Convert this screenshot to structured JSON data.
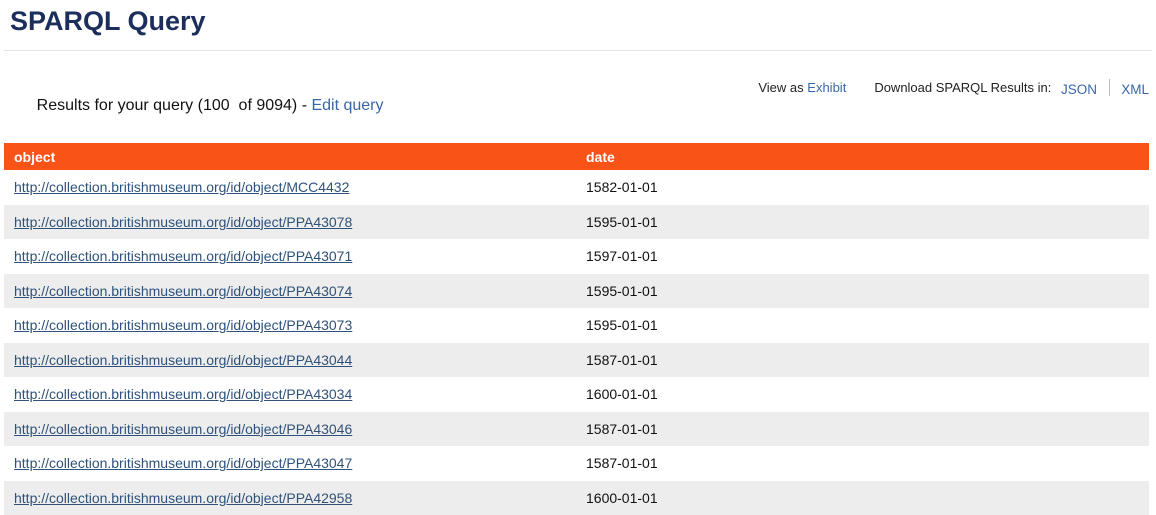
{
  "page": {
    "title": "SPARQL Query"
  },
  "results_bar": {
    "summary_prefix": "Results for your query (100  of 9094) - ",
    "edit_query_label": "Edit query",
    "view_as_label": "View as",
    "exhibit_label": "Exhibit",
    "download_label": "Download SPARQL Results in:",
    "json_label": "JSON",
    "xml_label": "XML"
  },
  "table": {
    "columns": [
      {
        "key": "object",
        "label": "object"
      },
      {
        "key": "date",
        "label": "date"
      }
    ],
    "rows": [
      {
        "object": "http://collection.britishmuseum.org/id/object/MCC4432",
        "date": "1582-01-01"
      },
      {
        "object": "http://collection.britishmuseum.org/id/object/PPA43078",
        "date": "1595-01-01"
      },
      {
        "object": "http://collection.britishmuseum.org/id/object/PPA43071",
        "date": "1597-01-01"
      },
      {
        "object": "http://collection.britishmuseum.org/id/object/PPA43074",
        "date": "1595-01-01"
      },
      {
        "object": "http://collection.britishmuseum.org/id/object/PPA43073",
        "date": "1595-01-01"
      },
      {
        "object": "http://collection.britishmuseum.org/id/object/PPA43044",
        "date": "1587-01-01"
      },
      {
        "object": "http://collection.britishmuseum.org/id/object/PPA43034",
        "date": "1600-01-01"
      },
      {
        "object": "http://collection.britishmuseum.org/id/object/PPA43046",
        "date": "1587-01-01"
      },
      {
        "object": "http://collection.britishmuseum.org/id/object/PPA43047",
        "date": "1587-01-01"
      },
      {
        "object": "http://collection.britishmuseum.org/id/object/PPA42958",
        "date": "1600-01-01"
      }
    ]
  },
  "colors": {
    "table_header_bg": "#FA5317",
    "row_alt_bg": "#EDEDED",
    "title_color": "#1C2E5C",
    "link_blue": "#3867A8",
    "table_link_blue": "#2E527B",
    "divider": "#E4E4E4"
  }
}
